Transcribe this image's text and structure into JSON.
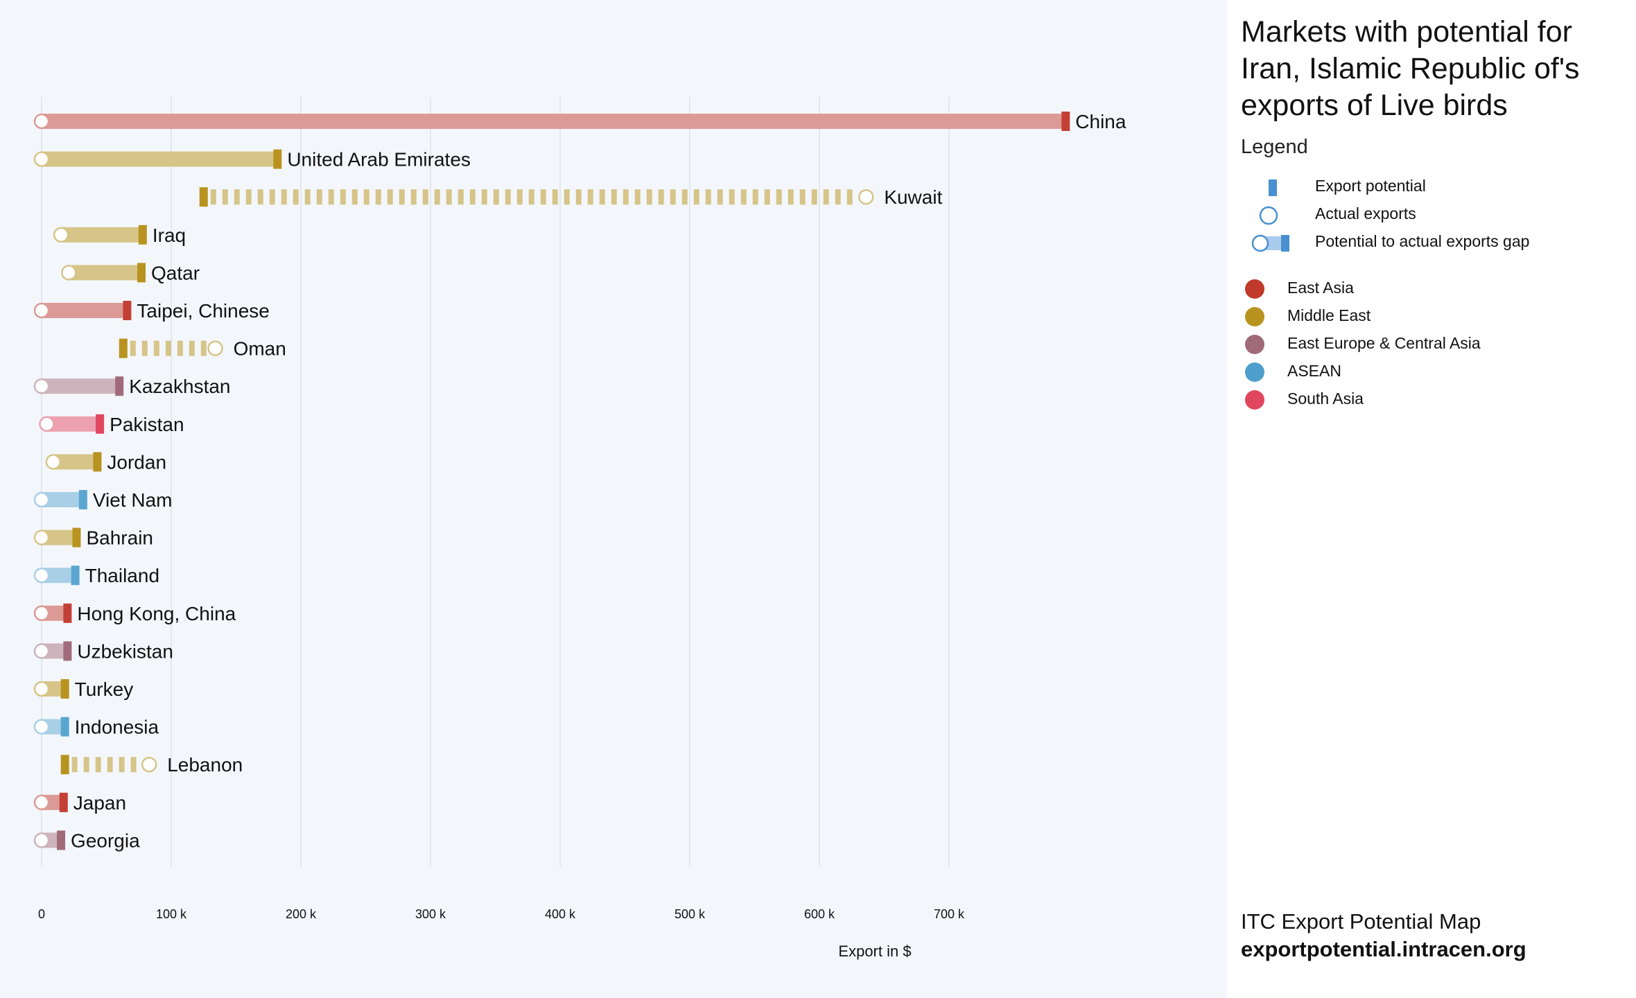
{
  "sidebar": {
    "title": "Markets with potential for Iran, Islamic Republic of's exports of Live birds",
    "legend_heading": "Legend",
    "legend_items": [
      {
        "label": "Export potential",
        "icon": "export-potential-bar"
      },
      {
        "label": "Actual exports",
        "icon": "actual-exports-circle"
      },
      {
        "label": "Potential to actual exports gap",
        "icon": "gap-bar"
      }
    ],
    "regions": [
      {
        "label": "East Asia",
        "color": "#c0392b"
      },
      {
        "label": "Middle East",
        "color": "#b8931f"
      },
      {
        "label": "East Europe & Central Asia",
        "color": "#a06a7a"
      },
      {
        "label": "ASEAN",
        "color": "#4e9fcb"
      },
      {
        "label": "South Asia",
        "color": "#e0475f"
      }
    ],
    "footer": {
      "line1": "ITC Export Potential Map",
      "line2": "exportpotential.intracen.org"
    }
  },
  "chart_data": {
    "type": "bar",
    "xlabel": "Export in $",
    "xlim": [
      0,
      800000
    ],
    "xticks": [
      {
        "value": 0,
        "label": "0"
      },
      {
        "value": 100000,
        "label": "100 k"
      },
      {
        "value": 200000,
        "label": "200 k"
      },
      {
        "value": 300000,
        "label": "300 k"
      },
      {
        "value": 400000,
        "label": "400 k"
      },
      {
        "value": 500000,
        "label": "500 k"
      },
      {
        "value": 600000,
        "label": "600 k"
      },
      {
        "value": 700000,
        "label": "700 k"
      }
    ],
    "grid": true,
    "colors": {
      "East Asia": {
        "dark": "#c43f35",
        "light": "#dc9a96"
      },
      "Middle East": {
        "dark": "#b8931f",
        "light": "#d6c488"
      },
      "East Europe & Central Asia": {
        "dark": "#a06a7a",
        "light": "#cdb3bb"
      },
      "ASEAN": {
        "dark": "#5ba6d1",
        "light": "#a8cfe6"
      },
      "South Asia": {
        "dark": "#e0475f",
        "light": "#eda0ad"
      }
    },
    "markets": [
      {
        "name": "China",
        "region": "East Asia",
        "actual": 0,
        "potential": 790000
      },
      {
        "name": "United Arab Emirates",
        "region": "Middle East",
        "actual": 0,
        "potential": 182000
      },
      {
        "name": "Kuwait",
        "region": "Middle East",
        "actual": 636000,
        "potential": 125000
      },
      {
        "name": "Iraq",
        "region": "Middle East",
        "actual": 15000,
        "potential": 78000
      },
      {
        "name": "Qatar",
        "region": "Middle East",
        "actual": 21000,
        "potential": 77000
      },
      {
        "name": "Taipei, Chinese",
        "region": "East Asia",
        "actual": 0,
        "potential": 66000
      },
      {
        "name": "Oman",
        "region": "Middle East",
        "actual": 134000,
        "potential": 63000
      },
      {
        "name": "Kazakhstan",
        "region": "East Europe & Central Asia",
        "actual": 0,
        "potential": 60000
      },
      {
        "name": "Pakistan",
        "region": "South Asia",
        "actual": 4000,
        "potential": 45000
      },
      {
        "name": "Jordan",
        "region": "Middle East",
        "actual": 9000,
        "potential": 43000
      },
      {
        "name": "Viet Nam",
        "region": "ASEAN",
        "actual": 0,
        "potential": 32000
      },
      {
        "name": "Bahrain",
        "region": "Middle East",
        "actual": 0,
        "potential": 27000
      },
      {
        "name": "Thailand",
        "region": "ASEAN",
        "actual": 0,
        "potential": 26000
      },
      {
        "name": "Hong Kong, China",
        "region": "East Asia",
        "actual": 0,
        "potential": 20000
      },
      {
        "name": "Uzbekistan",
        "region": "East Europe & Central Asia",
        "actual": 0,
        "potential": 20000
      },
      {
        "name": "Turkey",
        "region": "Middle East",
        "actual": 0,
        "potential": 18000
      },
      {
        "name": "Indonesia",
        "region": "ASEAN",
        "actual": 0,
        "potential": 18000
      },
      {
        "name": "Lebanon",
        "region": "Middle East",
        "actual": 83000,
        "potential": 18000
      },
      {
        "name": "Japan",
        "region": "East Asia",
        "actual": 0,
        "potential": 17000
      },
      {
        "name": "Georgia",
        "region": "East Europe & Central Asia",
        "actual": 0,
        "potential": 15000
      }
    ]
  }
}
